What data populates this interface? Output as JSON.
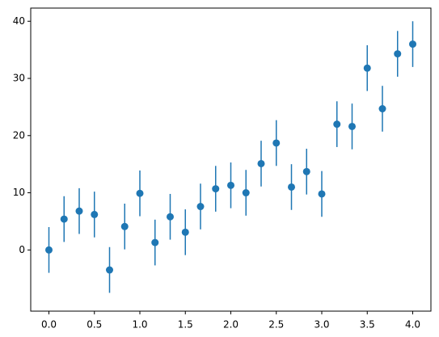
{
  "chart_data": {
    "type": "errorbar",
    "x": [
      0,
      0.1667,
      0.3333,
      0.5,
      0.6667,
      0.8333,
      1.0,
      1.1667,
      1.3333,
      1.5,
      1.6667,
      1.8333,
      2.0,
      2.1667,
      2.3333,
      2.5,
      2.6667,
      2.8333,
      3.0,
      3.1667,
      3.3333,
      3.5,
      3.6667,
      3.8333,
      4.0
    ],
    "values": [
      0,
      5.4,
      6.8,
      6.2,
      -3.5,
      4.1,
      9.9,
      1.3,
      5.8,
      3.1,
      7.6,
      10.7,
      11.3,
      10.0,
      15.1,
      18.7,
      11.0,
      13.7,
      9.8,
      22.0,
      21.6,
      31.8,
      24.7,
      34.3,
      36.0
    ],
    "errors": [
      4,
      4,
      4,
      4,
      4,
      4,
      4,
      4,
      4,
      4,
      4,
      4,
      4,
      4,
      4,
      4,
      4,
      4,
      4,
      4,
      4,
      4,
      4,
      4,
      4
    ],
    "color": "#1f77b4",
    "xlim": [
      -0.2,
      4.2
    ],
    "ylim": [
      -10.7,
      42.3
    ],
    "xticks": [
      {
        "value": 0,
        "label": "0.0"
      },
      {
        "value": 0.5,
        "label": "0.5"
      },
      {
        "value": 1,
        "label": "1.0"
      },
      {
        "value": 1.5,
        "label": "1.5"
      },
      {
        "value": 2,
        "label": "2.0"
      },
      {
        "value": 2.5,
        "label": "2.5"
      },
      {
        "value": 3,
        "label": "3.0"
      },
      {
        "value": 3.5,
        "label": "3.5"
      },
      {
        "value": 4,
        "label": "4.0"
      }
    ],
    "yticks": [
      0,
      10,
      20,
      30,
      40
    ]
  }
}
